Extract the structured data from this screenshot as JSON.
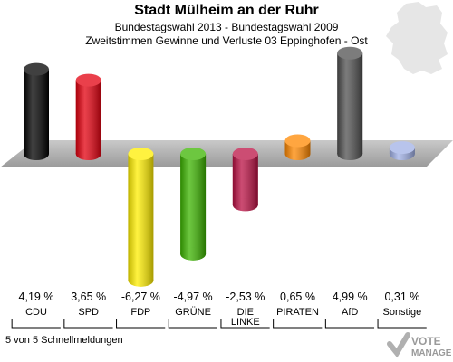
{
  "header": {
    "title": "Stadt Mülheim an der Ruhr",
    "subtitle1": "Bundestagswahl 2013 - Bundestagswahl 2009",
    "subtitle2": "Zweitstimmen Gewinne und Verluste 03 Eppinghofen - Ost"
  },
  "footer": {
    "note": "5 von 5 Schnellmeldungen"
  },
  "logo": {
    "text_top": "VOTE",
    "text_bottom": "MANAGER"
  },
  "chart_data": {
    "type": "bar",
    "categories": [
      "CDU",
      "SPD",
      "FDP",
      "GRÜNE",
      "DIE LINKE",
      "PIRATEN",
      "AfD",
      "Sonstige"
    ],
    "values": [
      4.19,
      3.65,
      -6.27,
      -4.97,
      -2.53,
      0.65,
      4.99,
      0.31
    ],
    "value_labels": [
      "4,19 %",
      "3,65 %",
      "-6,27 %",
      "-4,97 %",
      "-2,53 %",
      "0,65 %",
      "4,99 %",
      "0,31 %"
    ],
    "category_labels": [
      "CDU",
      "SPD",
      "FDP",
      "GRÜNE",
      "DIE\nLINKE",
      "PIRATEN",
      "AfD",
      "Sonstige"
    ],
    "colors": [
      "#000000",
      "#e3000f",
      "#ffee00",
      "#3cb400",
      "#bb1144",
      "#ff8800",
      "#505050",
      "#a0b0e6"
    ],
    "grid": false,
    "legend": "none"
  }
}
